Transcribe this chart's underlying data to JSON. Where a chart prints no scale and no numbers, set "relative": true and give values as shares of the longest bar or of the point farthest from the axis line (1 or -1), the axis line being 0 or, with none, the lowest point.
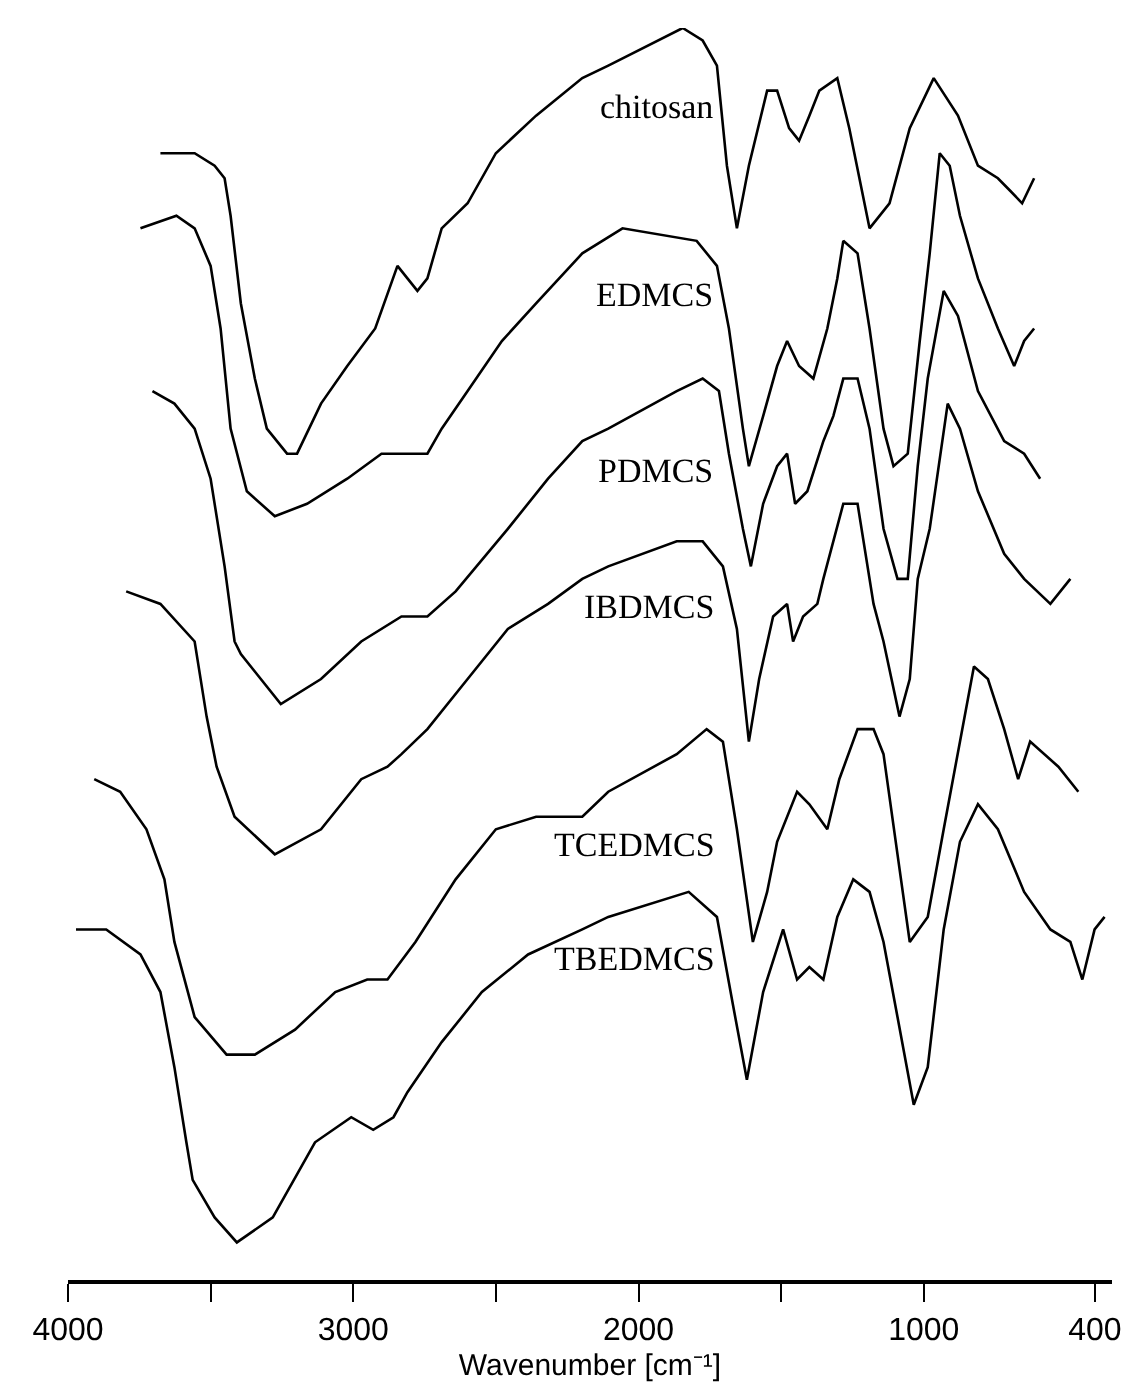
{
  "chart_data": {
    "type": "line",
    "relative": true,
    "xlabel": "Wavenumber [cm⁻¹]",
    "xlim": [
      4000,
      340
    ],
    "xticks": [
      4000,
      {
        "value": 3500,
        "label": null
      },
      3000,
      {
        "value": 2500,
        "label": null
      },
      2000,
      {
        "value": 1500,
        "label": null
      },
      1000,
      400
    ],
    "tick_labels": "x",
    "series": [
      {
        "name": "chitosan",
        "color": "#000000",
        "x": [
          3676,
          3606,
          3556,
          3486,
          3451,
          3430,
          3394,
          3345,
          3303,
          3232,
          3197,
          3113,
          3021,
          2923,
          2845,
          2810,
          2775,
          2740,
          2690,
          2599,
          2500,
          2359,
          2197,
          2106,
          1845,
          1775,
          1725,
          1690,
          1655,
          1613,
          1549,
          1514,
          1472,
          1437,
          1401,
          1366,
          1303,
          1261,
          1190,
          1120,
          1049,
          965,
          880,
          810,
          740,
          697,
          655,
          613
        ],
        "values": [
          0.9,
          0.9,
          0.9,
          0.89,
          0.88,
          0.85,
          0.78,
          0.72,
          0.68,
          0.66,
          0.66,
          0.7,
          0.73,
          0.76,
          0.81,
          0.8,
          0.79,
          0.8,
          0.84,
          0.86,
          0.9,
          0.93,
          0.96,
          0.97,
          1.0,
          0.99,
          0.97,
          0.89,
          0.84,
          0.89,
          0.95,
          0.95,
          0.92,
          0.91,
          0.93,
          0.95,
          0.96,
          0.92,
          0.84,
          0.86,
          0.92,
          0.96,
          0.93,
          0.89,
          0.88,
          0.87,
          0.86,
          0.88
        ]
      },
      {
        "name": "EDMCS",
        "color": "#000000",
        "x": [
          3746,
          3620,
          3556,
          3500,
          3465,
          3430,
          3373,
          3275,
          3162,
          3021,
          2901,
          2740,
          2690,
          2599,
          2479,
          2359,
          2197,
          2056,
          1796,
          1725,
          1683,
          1634,
          1613,
          1563,
          1514,
          1479,
          1437,
          1387,
          1338,
          1303,
          1282,
          1232,
          1190,
          1141,
          1106,
          1056,
          1014,
          979,
          944,
          909,
          873,
          810,
          740,
          683,
          648,
          613
        ],
        "values": [
          0.84,
          0.85,
          0.84,
          0.81,
          0.76,
          0.68,
          0.63,
          0.61,
          0.62,
          0.64,
          0.66,
          0.66,
          0.68,
          0.71,
          0.75,
          0.78,
          0.82,
          0.84,
          0.83,
          0.81,
          0.76,
          0.68,
          0.65,
          0.69,
          0.73,
          0.75,
          0.73,
          0.72,
          0.76,
          0.8,
          0.83,
          0.82,
          0.76,
          0.68,
          0.65,
          0.66,
          0.75,
          0.82,
          0.9,
          0.89,
          0.85,
          0.8,
          0.76,
          0.73,
          0.75,
          0.76
        ]
      },
      {
        "name": "PDMCS",
        "color": "#000000",
        "x": [
          3704,
          3627,
          3556,
          3500,
          3451,
          3416,
          3394,
          3254,
          3113,
          2972,
          2831,
          2740,
          2641,
          2458,
          2317,
          2197,
          2106,
          1866,
          1775,
          1718,
          1683,
          1634,
          1606,
          1563,
          1514,
          1479,
          1451,
          1408,
          1352,
          1317,
          1282,
          1232,
          1190,
          1141,
          1092,
          1056,
          1021,
          986,
          930,
          880,
          810,
          718,
          648,
          592
        ],
        "values": [
          0.71,
          0.7,
          0.68,
          0.64,
          0.57,
          0.51,
          0.5,
          0.46,
          0.48,
          0.51,
          0.53,
          0.53,
          0.55,
          0.6,
          0.64,
          0.67,
          0.68,
          0.71,
          0.72,
          0.71,
          0.66,
          0.6,
          0.57,
          0.62,
          0.65,
          0.66,
          0.62,
          0.63,
          0.67,
          0.69,
          0.72,
          0.72,
          0.68,
          0.6,
          0.56,
          0.56,
          0.65,
          0.72,
          0.79,
          0.77,
          0.71,
          0.67,
          0.66,
          0.64
        ]
      },
      {
        "name": "IBDMCS",
        "color": "#000000",
        "x": [
          3796,
          3676,
          3556,
          3514,
          3479,
          3416,
          3275,
          3113,
          2972,
          2880,
          2831,
          2740,
          2599,
          2458,
          2317,
          2197,
          2106,
          1866,
          1775,
          1704,
          1655,
          1613,
          1577,
          1528,
          1479,
          1458,
          1423,
          1373,
          1352,
          1282,
          1232,
          1176,
          1141,
          1085,
          1049,
          1021,
          979,
          916,
          873,
          810,
          718,
          648,
          556,
          486
        ],
        "values": [
          0.55,
          0.54,
          0.51,
          0.45,
          0.41,
          0.37,
          0.34,
          0.36,
          0.4,
          0.41,
          0.42,
          0.44,
          0.48,
          0.52,
          0.54,
          0.56,
          0.57,
          0.59,
          0.59,
          0.57,
          0.52,
          0.43,
          0.48,
          0.53,
          0.54,
          0.51,
          0.53,
          0.54,
          0.56,
          0.62,
          0.62,
          0.54,
          0.51,
          0.45,
          0.48,
          0.56,
          0.6,
          0.7,
          0.68,
          0.63,
          0.58,
          0.56,
          0.54,
          0.56
        ]
      },
      {
        "name": "TCEDMCS",
        "color": "#000000",
        "x": [
          3908,
          3817,
          3725,
          3662,
          3627,
          3556,
          3444,
          3345,
          3204,
          3063,
          2951,
          2880,
          2782,
          2641,
          2500,
          2359,
          2197,
          2106,
          1866,
          1761,
          1704,
          1655,
          1599,
          1549,
          1514,
          1444,
          1401,
          1338,
          1296,
          1232,
          1176,
          1141,
          1092,
          1049,
          986,
          930,
          873,
          824,
          775,
          718,
          669,
          627,
          528,
          458
        ],
        "values": [
          0.4,
          0.39,
          0.36,
          0.32,
          0.27,
          0.21,
          0.18,
          0.18,
          0.2,
          0.23,
          0.24,
          0.24,
          0.27,
          0.32,
          0.36,
          0.37,
          0.37,
          0.39,
          0.42,
          0.44,
          0.43,
          0.36,
          0.27,
          0.31,
          0.35,
          0.39,
          0.38,
          0.36,
          0.4,
          0.44,
          0.44,
          0.42,
          0.34,
          0.27,
          0.29,
          0.36,
          0.43,
          0.49,
          0.48,
          0.44,
          0.4,
          0.43,
          0.41,
          0.39
        ]
      },
      {
        "name": "TBEDMCS",
        "color": "#000000",
        "x": [
          3972,
          3866,
          3746,
          3676,
          3627,
          3585,
          3563,
          3486,
          3408,
          3282,
          3134,
          3007,
          2930,
          2859,
          2810,
          2690,
          2549,
          2387,
          2197,
          2106,
          1824,
          1725,
          1669,
          1620,
          1563,
          1493,
          1444,
          1401,
          1352,
          1303,
          1247,
          1190,
          1141,
          1092,
          1035,
          986,
          930,
          873,
          810,
          740,
          648,
          556,
          486,
          444,
          401,
          366
        ],
        "values": [
          0.28,
          0.28,
          0.26,
          0.23,
          0.17,
          0.11,
          0.08,
          0.05,
          0.03,
          0.05,
          0.11,
          0.13,
          0.12,
          0.13,
          0.15,
          0.19,
          0.23,
          0.26,
          0.28,
          0.29,
          0.31,
          0.29,
          0.22,
          0.16,
          0.23,
          0.28,
          0.24,
          0.25,
          0.24,
          0.29,
          0.32,
          0.31,
          0.27,
          0.21,
          0.14,
          0.17,
          0.28,
          0.35,
          0.38,
          0.36,
          0.31,
          0.28,
          0.27,
          0.24,
          0.28,
          0.29
        ]
      }
    ]
  }
}
